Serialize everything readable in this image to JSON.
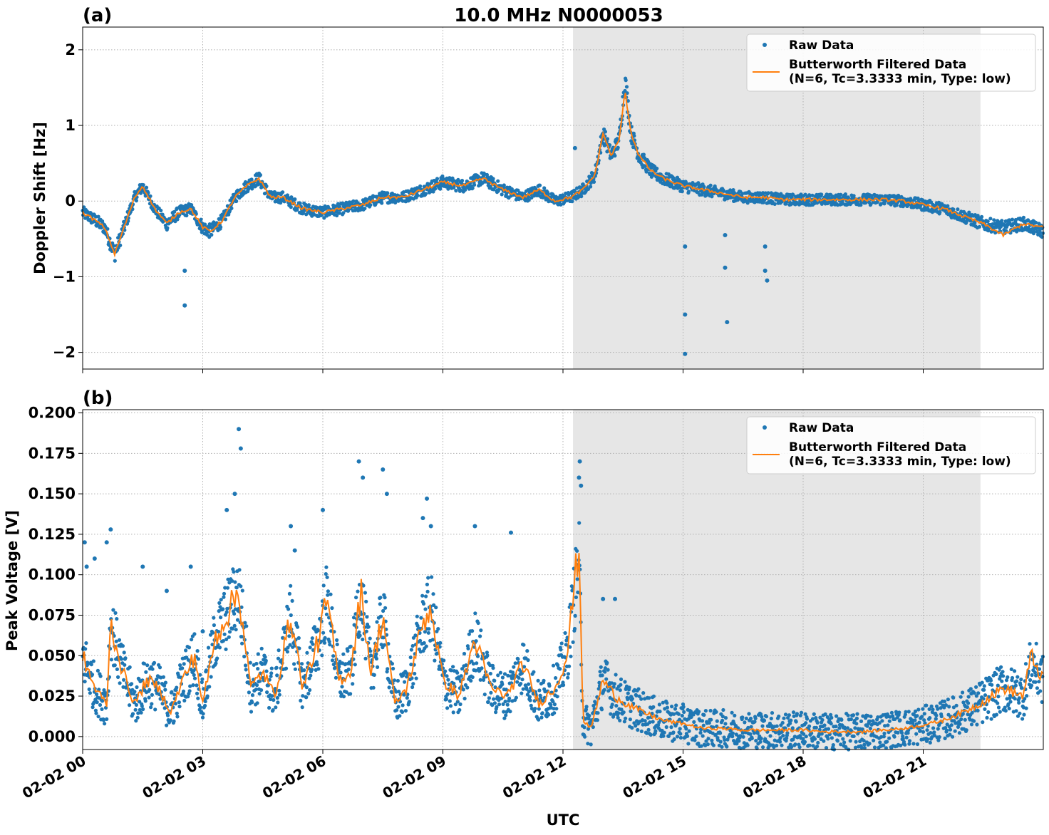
{
  "figure": {
    "title": "10.0 MHz N0000053",
    "xlabel": "UTC"
  },
  "colors": {
    "raw": "#1f77b4",
    "filtered": "#ff7f0e",
    "shade": "#e6e6e6",
    "grid": "#b0b0b0"
  },
  "chart_data": [
    {
      "type": "scatter",
      "panel_label": "(a)",
      "title": "10.0 MHz N0000053",
      "xlabel": "",
      "ylabel": "Doppler Shift [Hz]",
      "xlim": [
        0,
        24
      ],
      "ylim": [
        -2.22,
        2.3
      ],
      "yticks": [
        -2,
        -1,
        0,
        1,
        2
      ],
      "ytick_labels": [
        "−2",
        "−1",
        "0",
        "1",
        "2"
      ],
      "xticks": [
        0,
        3,
        6,
        9,
        12,
        15,
        18,
        21
      ],
      "xtick_labels": [],
      "x_unit": "hours UTC on 02-02",
      "grid": true,
      "shaded_region": [
        12.25,
        22.43
      ],
      "legend": {
        "position": "top-right",
        "entries": [
          {
            "label": "Raw Data",
            "kind": "marker"
          },
          {
            "label": "Butterworth Filtered Data\n(N=6, Tc=3.3333 min, Type: low)",
            "kind": "line"
          }
        ]
      },
      "series": [
        {
          "name": "Raw Data",
          "kind": "scatter",
          "spread": 0.12,
          "x": [
            0,
            0.3,
            0.55,
            0.8,
            1.0,
            1.3,
            1.5,
            1.8,
            2.1,
            2.4,
            2.7,
            3.0,
            3.2,
            3.5,
            3.8,
            4.1,
            4.4,
            4.7,
            5.0,
            5.5,
            6.0,
            6.5,
            7.0,
            7.5,
            8.0,
            8.5,
            9.0,
            9.5,
            10.0,
            10.5,
            11.0,
            11.4,
            11.8,
            12.2,
            12.5,
            12.8,
            13.0,
            13.2,
            13.4,
            13.55,
            13.7,
            13.9,
            14.2,
            14.5,
            15.0,
            15.5,
            16.0,
            16.5,
            17.0,
            17.5,
            18.0,
            19.0,
            20.0,
            20.5,
            21.0,
            21.5,
            22.0,
            22.5,
            23.0,
            23.5,
            24.0
          ],
          "y": [
            -0.15,
            -0.25,
            -0.35,
            -0.7,
            -0.4,
            0.05,
            0.2,
            -0.1,
            -0.3,
            -0.15,
            -0.1,
            -0.35,
            -0.4,
            -0.25,
            0.05,
            0.2,
            0.3,
            0.05,
            0.05,
            -0.1,
            -0.15,
            -0.1,
            -0.05,
            0.05,
            0.05,
            0.15,
            0.25,
            0.2,
            0.3,
            0.15,
            0.05,
            0.15,
            0.0,
            0.05,
            0.15,
            0.35,
            0.9,
            0.6,
            0.8,
            1.6,
            0.9,
            0.6,
            0.4,
            0.3,
            0.2,
            0.15,
            0.1,
            0.05,
            0.05,
            0.02,
            0.02,
            0.02,
            0.02,
            0.0,
            -0.05,
            -0.1,
            -0.2,
            -0.3,
            -0.35,
            -0.3,
            -0.4
          ]
        },
        {
          "name": "Butterworth Filtered Data",
          "kind": "line",
          "x": [
            0,
            0.3,
            0.55,
            0.8,
            1.0,
            1.3,
            1.5,
            1.8,
            2.1,
            2.4,
            2.7,
            3.0,
            3.2,
            3.5,
            3.8,
            4.1,
            4.4,
            4.7,
            5.0,
            5.5,
            6.0,
            6.5,
            7.0,
            7.5,
            8.0,
            8.5,
            9.0,
            9.5,
            10.0,
            10.5,
            11.0,
            11.4,
            11.8,
            12.2,
            12.5,
            12.8,
            13.0,
            13.2,
            13.4,
            13.55,
            13.7,
            13.9,
            14.2,
            14.5,
            15.0,
            15.5,
            16.0,
            16.5,
            17.0,
            17.5,
            18.0,
            19.0,
            20.0,
            20.5,
            21.0,
            21.5,
            22.0,
            22.5,
            23.0,
            23.5,
            24.0
          ],
          "y": [
            -0.15,
            -0.25,
            -0.35,
            -0.7,
            -0.4,
            0.05,
            0.2,
            -0.1,
            -0.3,
            -0.15,
            -0.1,
            -0.35,
            -0.4,
            -0.25,
            0.05,
            0.2,
            0.3,
            0.05,
            0.05,
            -0.1,
            -0.15,
            -0.1,
            -0.05,
            0.05,
            0.05,
            0.15,
            0.25,
            0.2,
            0.3,
            0.15,
            0.05,
            0.15,
            0.0,
            0.05,
            0.15,
            0.35,
            0.9,
            0.6,
            0.8,
            1.45,
            0.9,
            0.6,
            0.4,
            0.3,
            0.2,
            0.15,
            0.1,
            0.05,
            0.05,
            0.02,
            0.02,
            0.02,
            0.02,
            0.0,
            -0.05,
            -0.1,
            -0.2,
            -0.3,
            -0.45,
            -0.3,
            -0.35
          ]
        },
        {
          "name": "Raw Data (outliers)",
          "kind": "points",
          "x": [
            2.55,
            2.55,
            12.3,
            15.05,
            15.05,
            15.05,
            16.05,
            16.05,
            16.1,
            17.05,
            17.05,
            17.1
          ],
          "y": [
            -0.92,
            -1.38,
            0.7,
            -0.6,
            -1.5,
            -2.02,
            -0.45,
            -0.88,
            -1.6,
            -0.6,
            -0.92,
            -1.05
          ]
        }
      ]
    },
    {
      "type": "scatter",
      "panel_label": "(b)",
      "title": "",
      "xlabel": "UTC",
      "ylabel": "Peak Voltage [V]",
      "xlim": [
        0,
        24
      ],
      "ylim": [
        -0.008,
        0.202
      ],
      "yticks": [
        0.0,
        0.025,
        0.05,
        0.075,
        0.1,
        0.125,
        0.15,
        0.175,
        0.2
      ],
      "ytick_labels": [
        "0.000",
        "0.025",
        "0.050",
        "0.075",
        "0.100",
        "0.125",
        "0.150",
        "0.175",
        "0.200"
      ],
      "xticks": [
        0,
        3,
        6,
        9,
        12,
        15,
        18,
        21
      ],
      "xtick_labels": [
        "02-02 00",
        "02-02 03",
        "02-02 06",
        "02-02 09",
        "02-02 12",
        "02-02 15",
        "02-02 18",
        "02-02 21"
      ],
      "grid": true,
      "shaded_region": [
        12.25,
        22.43
      ],
      "legend": {
        "position": "top-right",
        "entries": [
          {
            "label": "Raw Data",
            "kind": "marker"
          },
          {
            "label": "Butterworth Filtered Data\n(N=6, Tc=3.3333 min, Type: low)",
            "kind": "line"
          }
        ]
      },
      "series": [
        {
          "name": "Raw Data",
          "kind": "scatter",
          "spread": 0.018,
          "x": [
            0,
            0.3,
            0.6,
            0.7,
            1.0,
            1.3,
            1.6,
            1.9,
            2.2,
            2.5,
            2.8,
            3.0,
            3.3,
            3.6,
            3.9,
            4.2,
            4.5,
            4.8,
            5.2,
            5.5,
            5.9,
            6.1,
            6.4,
            6.7,
            6.95,
            7.2,
            7.5,
            7.8,
            8.1,
            8.5,
            8.7,
            9.0,
            9.4,
            9.8,
            10.2,
            10.6,
            11.0,
            11.4,
            11.8,
            12.1,
            12.4,
            12.5,
            12.7,
            13.0,
            13.3,
            13.6,
            14.0,
            14.5,
            15.0,
            15.5,
            16.0,
            16.5,
            17.0,
            17.5,
            18.0,
            18.5,
            19.0,
            19.5,
            20.0,
            20.5,
            21.0,
            21.5,
            22.0,
            22.4,
            23.0,
            23.5,
            23.7,
            24.0
          ],
          "y": [
            0.05,
            0.03,
            0.02,
            0.07,
            0.04,
            0.02,
            0.035,
            0.03,
            0.015,
            0.035,
            0.05,
            0.02,
            0.06,
            0.075,
            0.09,
            0.03,
            0.04,
            0.025,
            0.075,
            0.03,
            0.06,
            0.085,
            0.035,
            0.04,
            0.09,
            0.04,
            0.075,
            0.02,
            0.03,
            0.07,
            0.08,
            0.035,
            0.025,
            0.06,
            0.03,
            0.025,
            0.045,
            0.02,
            0.03,
            0.05,
            0.11,
            0.01,
            0.005,
            0.035,
            0.025,
            0.02,
            0.015,
            0.01,
            0.008,
            0.005,
            0.005,
            0.004,
            0.004,
            0.004,
            0.004,
            0.003,
            0.003,
            0.003,
            0.004,
            0.005,
            0.007,
            0.01,
            0.015,
            0.02,
            0.03,
            0.025,
            0.045,
            0.035
          ]
        },
        {
          "name": "Butterworth Filtered Data",
          "kind": "line",
          "x": [
            0,
            0.3,
            0.6,
            0.7,
            1.0,
            1.3,
            1.6,
            1.9,
            2.2,
            2.5,
            2.8,
            3.0,
            3.3,
            3.6,
            3.9,
            4.2,
            4.5,
            4.8,
            5.2,
            5.5,
            5.9,
            6.1,
            6.4,
            6.7,
            6.95,
            7.2,
            7.5,
            7.8,
            8.1,
            8.5,
            8.7,
            9.0,
            9.4,
            9.8,
            10.2,
            10.6,
            11.0,
            11.4,
            11.8,
            12.1,
            12.4,
            12.5,
            12.7,
            13.0,
            13.3,
            13.6,
            14.0,
            14.5,
            15.0,
            15.5,
            16.0,
            16.5,
            17.0,
            17.5,
            18.0,
            18.5,
            19.0,
            19.5,
            20.0,
            20.5,
            21.0,
            21.5,
            22.0,
            22.4,
            23.0,
            23.5,
            23.7,
            24.0
          ],
          "y": [
            0.05,
            0.03,
            0.02,
            0.07,
            0.04,
            0.02,
            0.035,
            0.03,
            0.015,
            0.035,
            0.05,
            0.02,
            0.06,
            0.075,
            0.09,
            0.03,
            0.04,
            0.025,
            0.075,
            0.03,
            0.06,
            0.085,
            0.035,
            0.04,
            0.09,
            0.04,
            0.075,
            0.02,
            0.03,
            0.07,
            0.08,
            0.035,
            0.025,
            0.06,
            0.03,
            0.025,
            0.045,
            0.02,
            0.03,
            0.05,
            0.12,
            0.01,
            0.005,
            0.035,
            0.025,
            0.02,
            0.015,
            0.01,
            0.008,
            0.005,
            0.005,
            0.004,
            0.004,
            0.004,
            0.004,
            0.003,
            0.003,
            0.003,
            0.004,
            0.005,
            0.007,
            0.01,
            0.015,
            0.02,
            0.03,
            0.025,
            0.05,
            0.035
          ]
        },
        {
          "name": "Raw Data (peaks)",
          "kind": "points",
          "x": [
            0.05,
            0.1,
            0.3,
            0.6,
            0.7,
            1.5,
            2.1,
            2.7,
            3.0,
            3.6,
            3.8,
            3.9,
            3.95,
            5.2,
            5.3,
            6.0,
            6.9,
            7.0,
            7.5,
            7.6,
            8.5,
            8.6,
            8.7,
            9.8,
            10.7,
            12.4,
            12.42,
            12.45,
            13.0,
            13.3
          ],
          "y": [
            0.12,
            0.105,
            0.11,
            0.12,
            0.128,
            0.105,
            0.09,
            0.105,
            0.065,
            0.14,
            0.15,
            0.19,
            0.178,
            0.13,
            0.115,
            0.14,
            0.17,
            0.16,
            0.165,
            0.15,
            0.135,
            0.147,
            0.13,
            0.13,
            0.126,
            0.16,
            0.17,
            0.155,
            0.085,
            0.085
          ]
        }
      ]
    }
  ]
}
